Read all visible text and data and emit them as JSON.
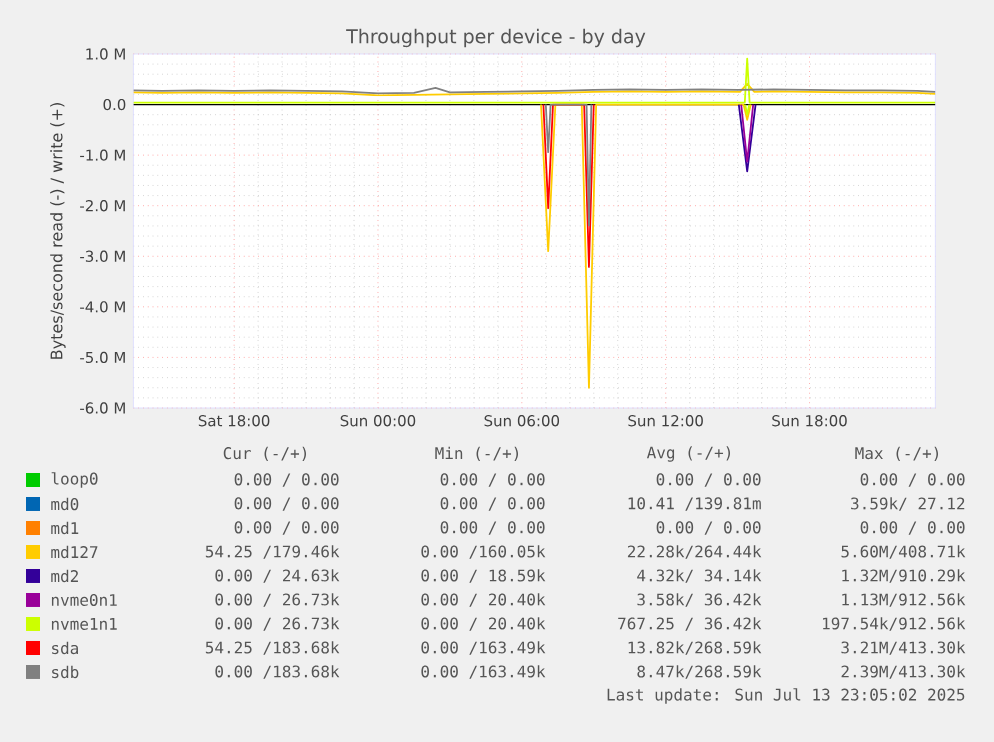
{
  "chart_data": {
    "type": "line",
    "title": "Throughput per device - by day",
    "ylabel": "Bytes/second read (-) / write (+)",
    "xlim": [
      "2025-07-12T13:48",
      "2025-07-13T23:15"
    ],
    "xticks": [
      {
        "value": "2025-07-12T18:00",
        "label": "Sat 18:00"
      },
      {
        "value": "2025-07-13T00:00",
        "label": "Sun 00:00"
      },
      {
        "value": "2025-07-13T06:00",
        "label": "Sun 06:00"
      },
      {
        "value": "2025-07-13T12:00",
        "label": "Sun 12:00"
      },
      {
        "value": "2025-07-13T18:00",
        "label": "Sun 18:00"
      }
    ],
    "ylim": [
      -6,
      1
    ],
    "yticks": [
      {
        "value": 1,
        "label": "1.0 M"
      },
      {
        "value": 0,
        "label": "0.0"
      },
      {
        "value": -1,
        "label": "-1.0 M"
      },
      {
        "value": -2,
        "label": "-2.0 M"
      },
      {
        "value": -3,
        "label": "-3.0 M"
      },
      {
        "value": -4,
        "label": "-4.0 M"
      },
      {
        "value": -5,
        "label": "-5.0 M"
      },
      {
        "value": -6,
        "label": "-6.0 M"
      }
    ],
    "grid": true,
    "legend": "bottom",
    "series": [
      {
        "color": "#ffcc00",
        "x": [
          "2025-07-13T06:48",
          "2025-07-13T07:06",
          "2025-07-13T07:24",
          "2025-07-13T08:30",
          "2025-07-13T08:48",
          "2025-07-13T09:06",
          "2025-07-13T15:15",
          "2025-07-13T15:24",
          "2025-07-13T15:33"
        ],
        "values": [
          0,
          -2.9,
          0,
          0,
          -5.6,
          0,
          0,
          -0.3,
          0
        ]
      },
      {
        "color": "#ff0000",
        "x": [
          "2025-07-13T06:54",
          "2025-07-13T07:06",
          "2025-07-13T07:18",
          "2025-07-13T08:36",
          "2025-07-13T08:48",
          "2025-07-13T09:00"
        ],
        "values": [
          0,
          -2.05,
          0,
          0,
          -3.21,
          0
        ]
      },
      {
        "color": "#808080",
        "x": [
          "2025-07-13T07:00",
          "2025-07-13T07:06",
          "2025-07-13T07:12",
          "2025-07-13T08:42",
          "2025-07-13T08:48",
          "2025-07-13T08:54"
        ],
        "values": [
          0,
          -0.94,
          0,
          0,
          -2.39,
          0
        ]
      },
      {
        "color": "#330099",
        "x": [
          "2025-07-13T15:03",
          "2025-07-13T15:24",
          "2025-07-13T15:45"
        ],
        "values": [
          0,
          -1.32,
          0
        ]
      },
      {
        "color": "#990099",
        "x": [
          "2025-07-13T15:09",
          "2025-07-13T15:24",
          "2025-07-13T15:39"
        ],
        "values": [
          0,
          -1.13,
          0
        ]
      },
      {
        "color": "#ccff00",
        "x": [
          "2025-07-13T15:19",
          "2025-07-13T15:24",
          "2025-07-13T15:29"
        ],
        "values": [
          0,
          -0.2,
          0
        ]
      },
      {
        "name": "loop0",
        "color": "#00cc00"
      },
      {
        "name": "md0",
        "color": "#0066b3"
      },
      {
        "name": "md1",
        "color": "#ff8000"
      },
      {
        "name": "md127",
        "color": "#ffcc00",
        "x": [
          "2025-07-12T13:48",
          "2025-07-12T15:00",
          "2025-07-12T16:30",
          "2025-07-12T18:00",
          "2025-07-12T19:30",
          "2025-07-12T21:00",
          "2025-07-12T22:30",
          "2025-07-13T00:00",
          "2025-07-13T01:30",
          "2025-07-13T03:00",
          "2025-07-13T04:30",
          "2025-07-13T06:00",
          "2025-07-13T07:30",
          "2025-07-13T09:00",
          "2025-07-13T10:30",
          "2025-07-13T12:00",
          "2025-07-13T13:30",
          "2025-07-13T15:06",
          "2025-07-13T15:24",
          "2025-07-13T15:42",
          "2025-07-13T16:30",
          "2025-07-13T18:00",
          "2025-07-13T19:30",
          "2025-07-13T21:00",
          "2025-07-13T22:30",
          "2025-07-13T23:15"
        ],
        "values": [
          0.24,
          0.23,
          0.24,
          0.23,
          0.24,
          0.23,
          0.22,
          0.18,
          0.19,
          0.2,
          0.21,
          0.22,
          0.23,
          0.25,
          0.26,
          0.25,
          0.26,
          0.25,
          0.41,
          0.25,
          0.26,
          0.25,
          0.24,
          0.24,
          0.23,
          0.21
        ]
      },
      {
        "name": "md2",
        "color": "#330099"
      },
      {
        "name": "nvme0n1",
        "color": "#990099"
      },
      {
        "name": "nvme1n1",
        "color": "#ccff00",
        "x": [
          "2025-07-12T13:48",
          "2025-07-13T15:18",
          "2025-07-13T15:24",
          "2025-07-13T15:30",
          "2025-07-13T23:15"
        ],
        "values": [
          0.04,
          0.04,
          0.91,
          0.04,
          0.04
        ]
      },
      {
        "name": "sda",
        "color": "#ff0000"
      },
      {
        "name": "sdb",
        "color": "#808080",
        "x": [
          "2025-07-12T13:48",
          "2025-07-12T15:00",
          "2025-07-12T16:30",
          "2025-07-12T18:00",
          "2025-07-12T19:30",
          "2025-07-12T21:00",
          "2025-07-12T22:30",
          "2025-07-13T00:00",
          "2025-07-13T01:30",
          "2025-07-13T02:24",
          "2025-07-13T03:00",
          "2025-07-13T04:30",
          "2025-07-13T06:00",
          "2025-07-13T07:30",
          "2025-07-13T09:00",
          "2025-07-13T10:30",
          "2025-07-13T12:00",
          "2025-07-13T13:30",
          "2025-07-13T15:00",
          "2025-07-13T16:30",
          "2025-07-13T18:00",
          "2025-07-13T19:30",
          "2025-07-13T21:00",
          "2025-07-13T22:30",
          "2025-07-13T23:15"
        ],
        "values": [
          0.28,
          0.27,
          0.28,
          0.27,
          0.28,
          0.27,
          0.26,
          0.22,
          0.23,
          0.33,
          0.24,
          0.25,
          0.26,
          0.27,
          0.29,
          0.3,
          0.29,
          0.3,
          0.29,
          0.3,
          0.29,
          0.28,
          0.28,
          0.27,
          0.25
        ]
      }
    ],
    "annotations": [
      "Cur (-/+)",
      "Min (-/+)",
      "Avg (-/+)",
      "Max (-/+)",
      "0.00 /  0.00",
      "0.00 /  0.00",
      "0.00 /  0.00",
      "0.00 /  0.00",
      "0.00 /  0.00",
      "0.00 /  0.00",
      "10.41 /139.81m",
      "3.59k/ 27.12",
      "0.00 /  0.00",
      "0.00 /  0.00",
      "0.00 /  0.00",
      "0.00 /  0.00",
      "54.25 /179.46k",
      "0.00 /160.05k",
      "22.28k/264.44k",
      "5.60M/408.71k",
      "0.00 / 24.63k",
      "0.00 / 18.59k",
      "4.32k/ 34.14k",
      "1.32M/910.29k",
      "0.00 / 26.73k",
      "0.00 / 20.40k",
      "3.58k/ 36.42k",
      "1.13M/912.56k",
      "0.00 / 26.73k",
      "0.00 / 20.40k",
      "767.25 / 36.42k",
      "197.54k/912.56k",
      "54.25 /183.68k",
      "0.00 /163.49k",
      "13.82k/268.59k",
      "3.21M/413.30k",
      "0.00 /183.68k",
      "0.00 /163.49k",
      "8.47k/268.59k",
      "2.39M/413.30k",
      "Last update: Sun Jul 13 23:05:02 2025"
    ]
  }
}
